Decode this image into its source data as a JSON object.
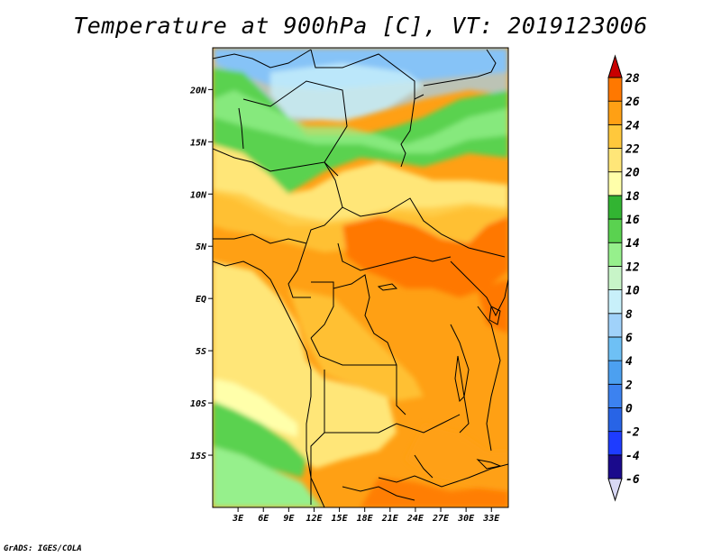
{
  "title": "Temperature at 900hPa [C], VT: 2019123006",
  "credit": "GrADS: IGES/COLA",
  "map": {
    "lat_labels": [
      "20N",
      "15N",
      "10N",
      "5N",
      "EQ",
      "5S",
      "10S",
      "15S"
    ],
    "lon_labels": [
      "3E",
      "6E",
      "9E",
      "12E",
      "15E",
      "18E",
      "21E",
      "24E",
      "27E",
      "30E",
      "33E"
    ],
    "lat_range": [
      -20,
      24
    ],
    "lon_range": [
      0,
      35
    ]
  },
  "colorbar": {
    "levels": [
      -6,
      -4,
      -2,
      0,
      2,
      4,
      6,
      8,
      10,
      12,
      14,
      16,
      18,
      20,
      22,
      24,
      26,
      28
    ],
    "labels": [
      "-6",
      "-4",
      "-2",
      "0",
      "2",
      "4",
      "6",
      "8",
      "10",
      "12",
      "14",
      "16",
      "18",
      "20",
      "22",
      "24",
      "26",
      "28"
    ],
    "colors": [
      "#1a0a8c",
      "#1e3cff",
      "#2864e6",
      "#3c82f0",
      "#4ca0f0",
      "#6ec0f5",
      "#a0d2fa",
      "#c8f0fa",
      "#c8f5c8",
      "#96f08c",
      "#5ad250",
      "#32b432",
      "#ffffaa",
      "#ffe678",
      "#ffc83c",
      "#ffa014",
      "#ff7800",
      "#ff3c00",
      "#c80000"
    ]
  }
}
